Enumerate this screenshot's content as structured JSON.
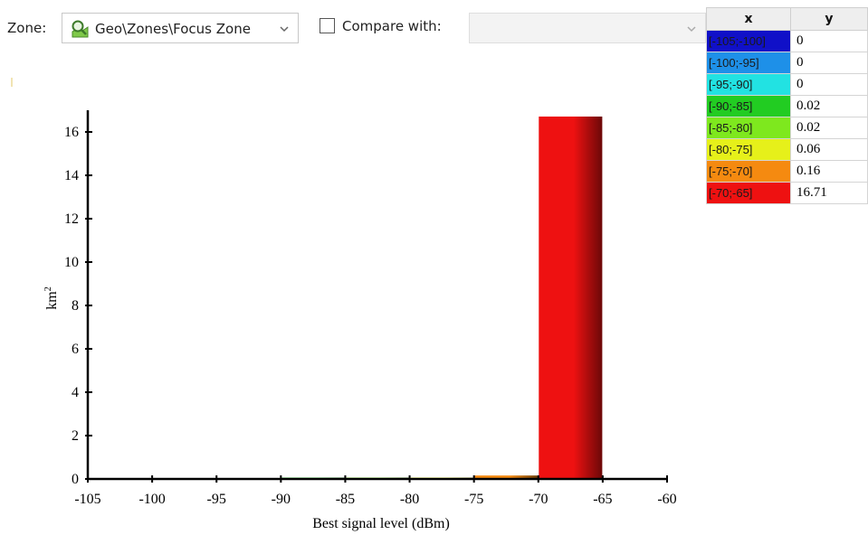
{
  "toolbar": {
    "zone_label": "Zone:",
    "zone_value": "Geo\\Zones\\Focus Zone",
    "zone_icon": "magnifier-map-icon",
    "compare_label": "Compare with:",
    "compare_checked": false,
    "compare_value": ""
  },
  "table": {
    "headers": {
      "x": "x",
      "y": "y"
    },
    "rows": [
      {
        "x": "[-105;-100]",
        "y": "0",
        "color": "#1010c8"
      },
      {
        "x": "[-100;-95]",
        "y": "0",
        "color": "#1e90e8"
      },
      {
        "x": "[-95;-90]",
        "y": "0",
        "color": "#22e2e2"
      },
      {
        "x": "[-90;-85]",
        "y": "0.02",
        "color": "#22cc22"
      },
      {
        "x": "[-85;-80]",
        "y": "0.02",
        "color": "#7ee81e"
      },
      {
        "x": "[-80;-75]",
        "y": "0.06",
        "color": "#e6f01a"
      },
      {
        "x": "[-75;-70]",
        "y": "0.16",
        "color": "#f58a10"
      },
      {
        "x": "[-70;-65]",
        "y": "16.71",
        "color": "#ee1111"
      }
    ]
  },
  "chart_data": {
    "type": "bar",
    "xlabel": "Best signal level (dBm)",
    "ylabel": "km²",
    "xlim": [
      -105,
      -60
    ],
    "ylim": [
      0,
      17
    ],
    "xticks": [
      -105,
      -100,
      -95,
      -90,
      -85,
      -80,
      -75,
      -70,
      -65,
      -60
    ],
    "yticks": [
      0,
      2,
      4,
      6,
      8,
      10,
      12,
      14,
      16
    ],
    "bins": [
      {
        "from": -105,
        "to": -100,
        "value": 0,
        "color": "#1010c8"
      },
      {
        "from": -100,
        "to": -95,
        "value": 0,
        "color": "#1e90e8"
      },
      {
        "from": -95,
        "to": -90,
        "value": 0,
        "color": "#22e2e2"
      },
      {
        "from": -90,
        "to": -85,
        "value": 0.02,
        "color": "#22cc22"
      },
      {
        "from": -85,
        "to": -80,
        "value": 0.02,
        "color": "#7ee81e"
      },
      {
        "from": -80,
        "to": -75,
        "value": 0.06,
        "color": "#e6f01a"
      },
      {
        "from": -75,
        "to": -70,
        "value": 0.16,
        "color": "#f58a10"
      },
      {
        "from": -70,
        "to": -65,
        "value": 16.71,
        "color": "#ee1111"
      }
    ]
  }
}
